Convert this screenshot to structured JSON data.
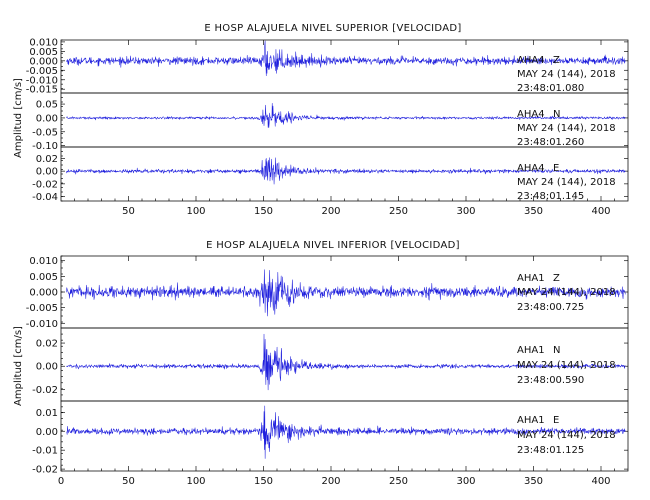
{
  "chart_data": [
    {
      "type": "line",
      "title": "E HOSP ALAJUELA NIVEL SUPERIOR [VELOCIDAD]",
      "ylabel": "Amplitud [cm/s]",
      "xlim": [
        0,
        420
      ],
      "x_ticks": [
        50,
        100,
        150,
        200,
        250,
        300,
        350,
        400
      ],
      "panels": [
        {
          "station": "AHA4",
          "component": "Z",
          "date": "MAY 24 (144), 2018",
          "time": "23:48:01.080",
          "ylim": [
            -0.017,
            0.011
          ],
          "y_ticks": [
            "0.010",
            "0.005",
            "0.000",
            "-0.005",
            "-0.010",
            "-0.015"
          ],
          "noise_amp": 0.0018,
          "peak_amp": 0.0095
        },
        {
          "station": "AHA4",
          "component": "N",
          "date": "MAY 24 (144), 2018",
          "time": "23:48:01.260",
          "ylim": [
            -0.105,
            0.09
          ],
          "y_ticks": [
            "0.05",
            "0.00",
            "-0.05",
            "-0.10"
          ],
          "noise_amp": 0.004,
          "peak_amp": 0.055
        },
        {
          "station": "AHA4",
          "component": "E",
          "date": "MAY 24 (144), 2018",
          "time": "23:48:01.145",
          "ylim": [
            -0.047,
            0.038
          ],
          "y_ticks": [
            "0.02",
            "0.00",
            "-0.02",
            "-0.04"
          ],
          "noise_amp": 0.0025,
          "peak_amp": 0.028
        }
      ]
    },
    {
      "type": "line",
      "title": "E HOSP ALAJUELA NIVEL INFERIOR [VELOCIDAD]",
      "ylabel": "Amplitud [cm/s]",
      "xlim": [
        0,
        420
      ],
      "x_ticks": [
        0,
        50,
        100,
        150,
        200,
        250,
        300,
        350,
        400
      ],
      "panels": [
        {
          "station": "AHA1",
          "component": "Z",
          "date": "MAY 24 (144), 2018",
          "time": "23:48:00.725",
          "ylim": [
            -0.0115,
            0.0115
          ],
          "y_ticks": [
            "0.010",
            "0.005",
            "0.000",
            "-0.005",
            "-0.010"
          ],
          "noise_amp": 0.0015,
          "peak_amp": 0.0095
        },
        {
          "station": "AHA1",
          "component": "N",
          "date": "MAY 24 (144), 2018",
          "time": "23:48:00.590",
          "ylim": [
            -0.03,
            0.033
          ],
          "y_ticks": [
            "0.02",
            "0.00",
            "-0.02"
          ],
          "noise_amp": 0.0015,
          "peak_amp": 0.028
        },
        {
          "station": "AHA1",
          "component": "E",
          "date": "MAY 24 (144), 2018",
          "time": "23:48:01.125",
          "ylim": [
            -0.021,
            0.016
          ],
          "y_ticks": [
            "0.01",
            "0.00",
            "-0.01",
            "-0.02"
          ],
          "noise_amp": 0.0015,
          "peak_amp": 0.014
        }
      ]
    }
  ],
  "colors": {
    "trace": "#1f1fdd",
    "axes": "#111111",
    "background": "#ffffff"
  }
}
